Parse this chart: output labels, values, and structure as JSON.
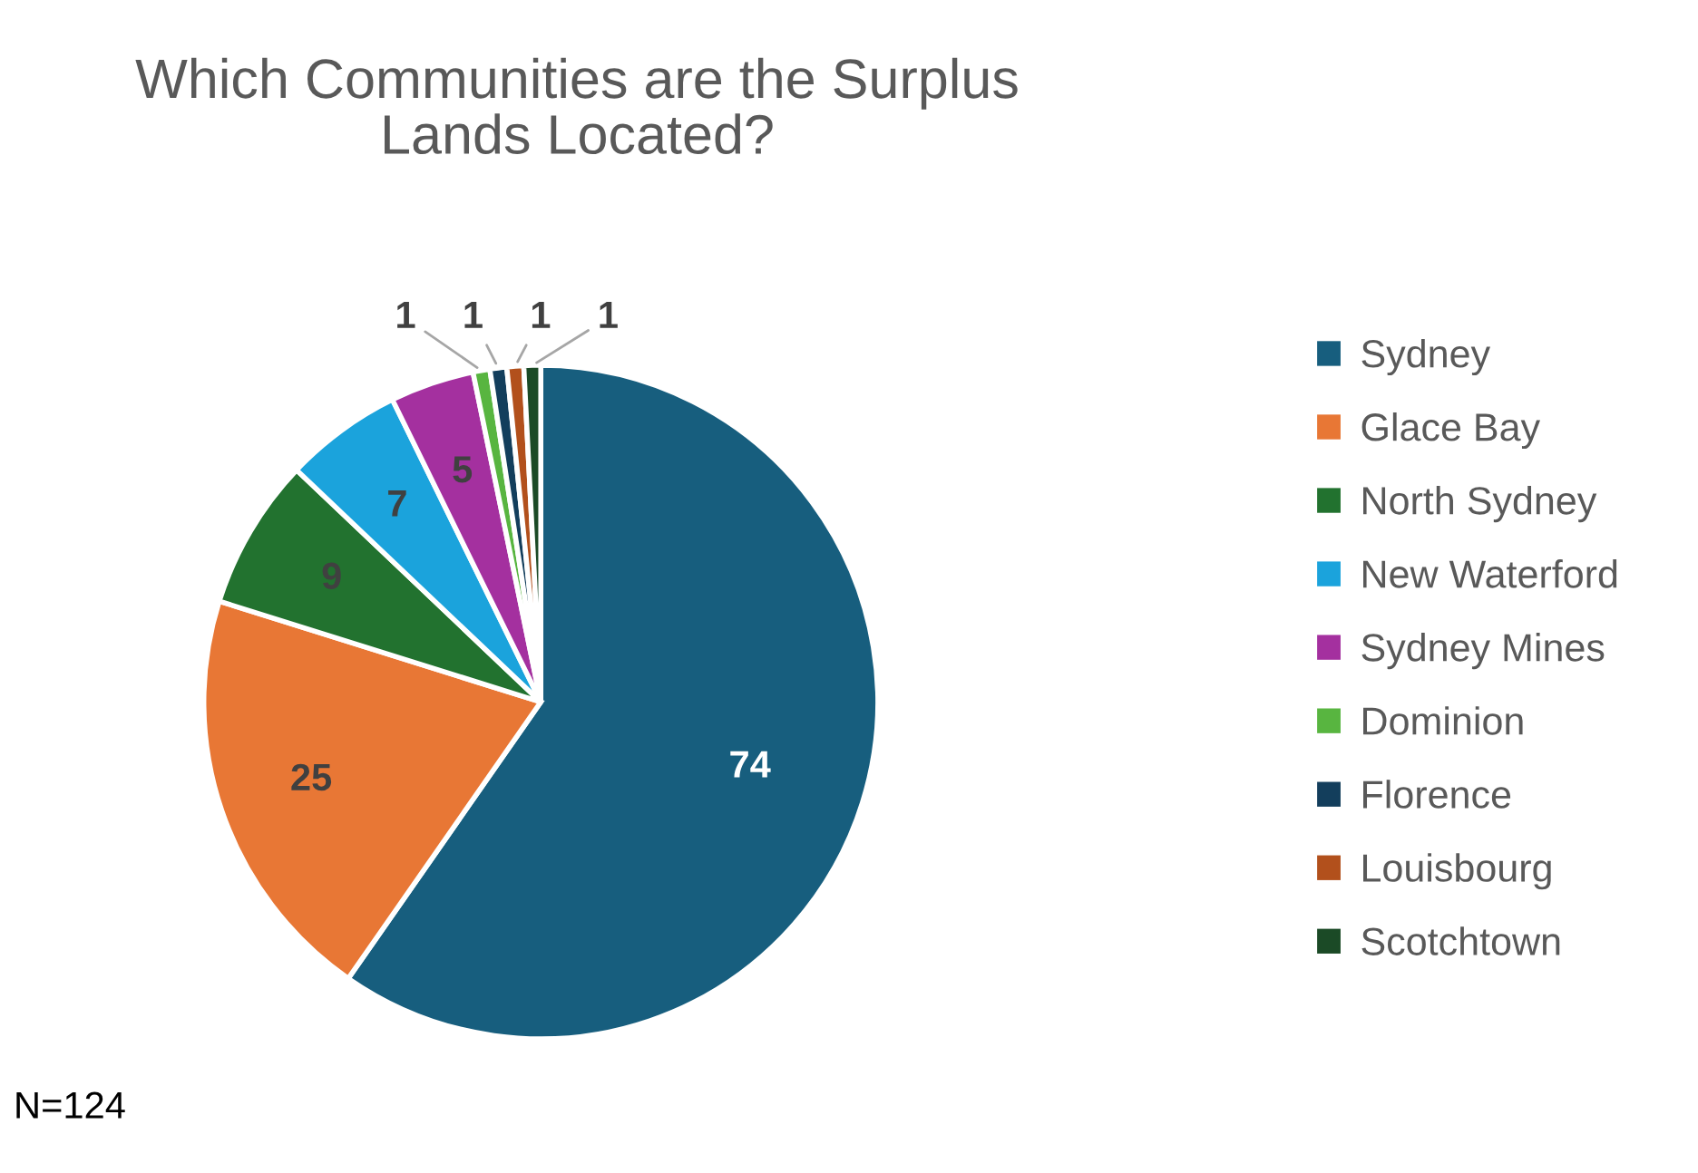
{
  "chart_data": {
    "type": "pie",
    "title": "Which Communities are the Surplus\nLands Located?",
    "categories": [
      "Sydney",
      "Glace Bay",
      "North Sydney",
      "New Waterford",
      "Sydney Mines",
      "Dominion",
      "Florence",
      "Louisbourg",
      "Scotchtown"
    ],
    "values": [
      74,
      25,
      9,
      7,
      5,
      1,
      1,
      1,
      1
    ],
    "colors": [
      "#175e7e",
      "#e87735",
      "#22722f",
      "#1ba3dc",
      "#a4309f",
      "#58b540",
      "#133e5c",
      "#b2501c",
      "#1b4a26"
    ],
    "data_labels": true,
    "legend": "right",
    "annotations": [
      "N=124"
    ]
  }
}
